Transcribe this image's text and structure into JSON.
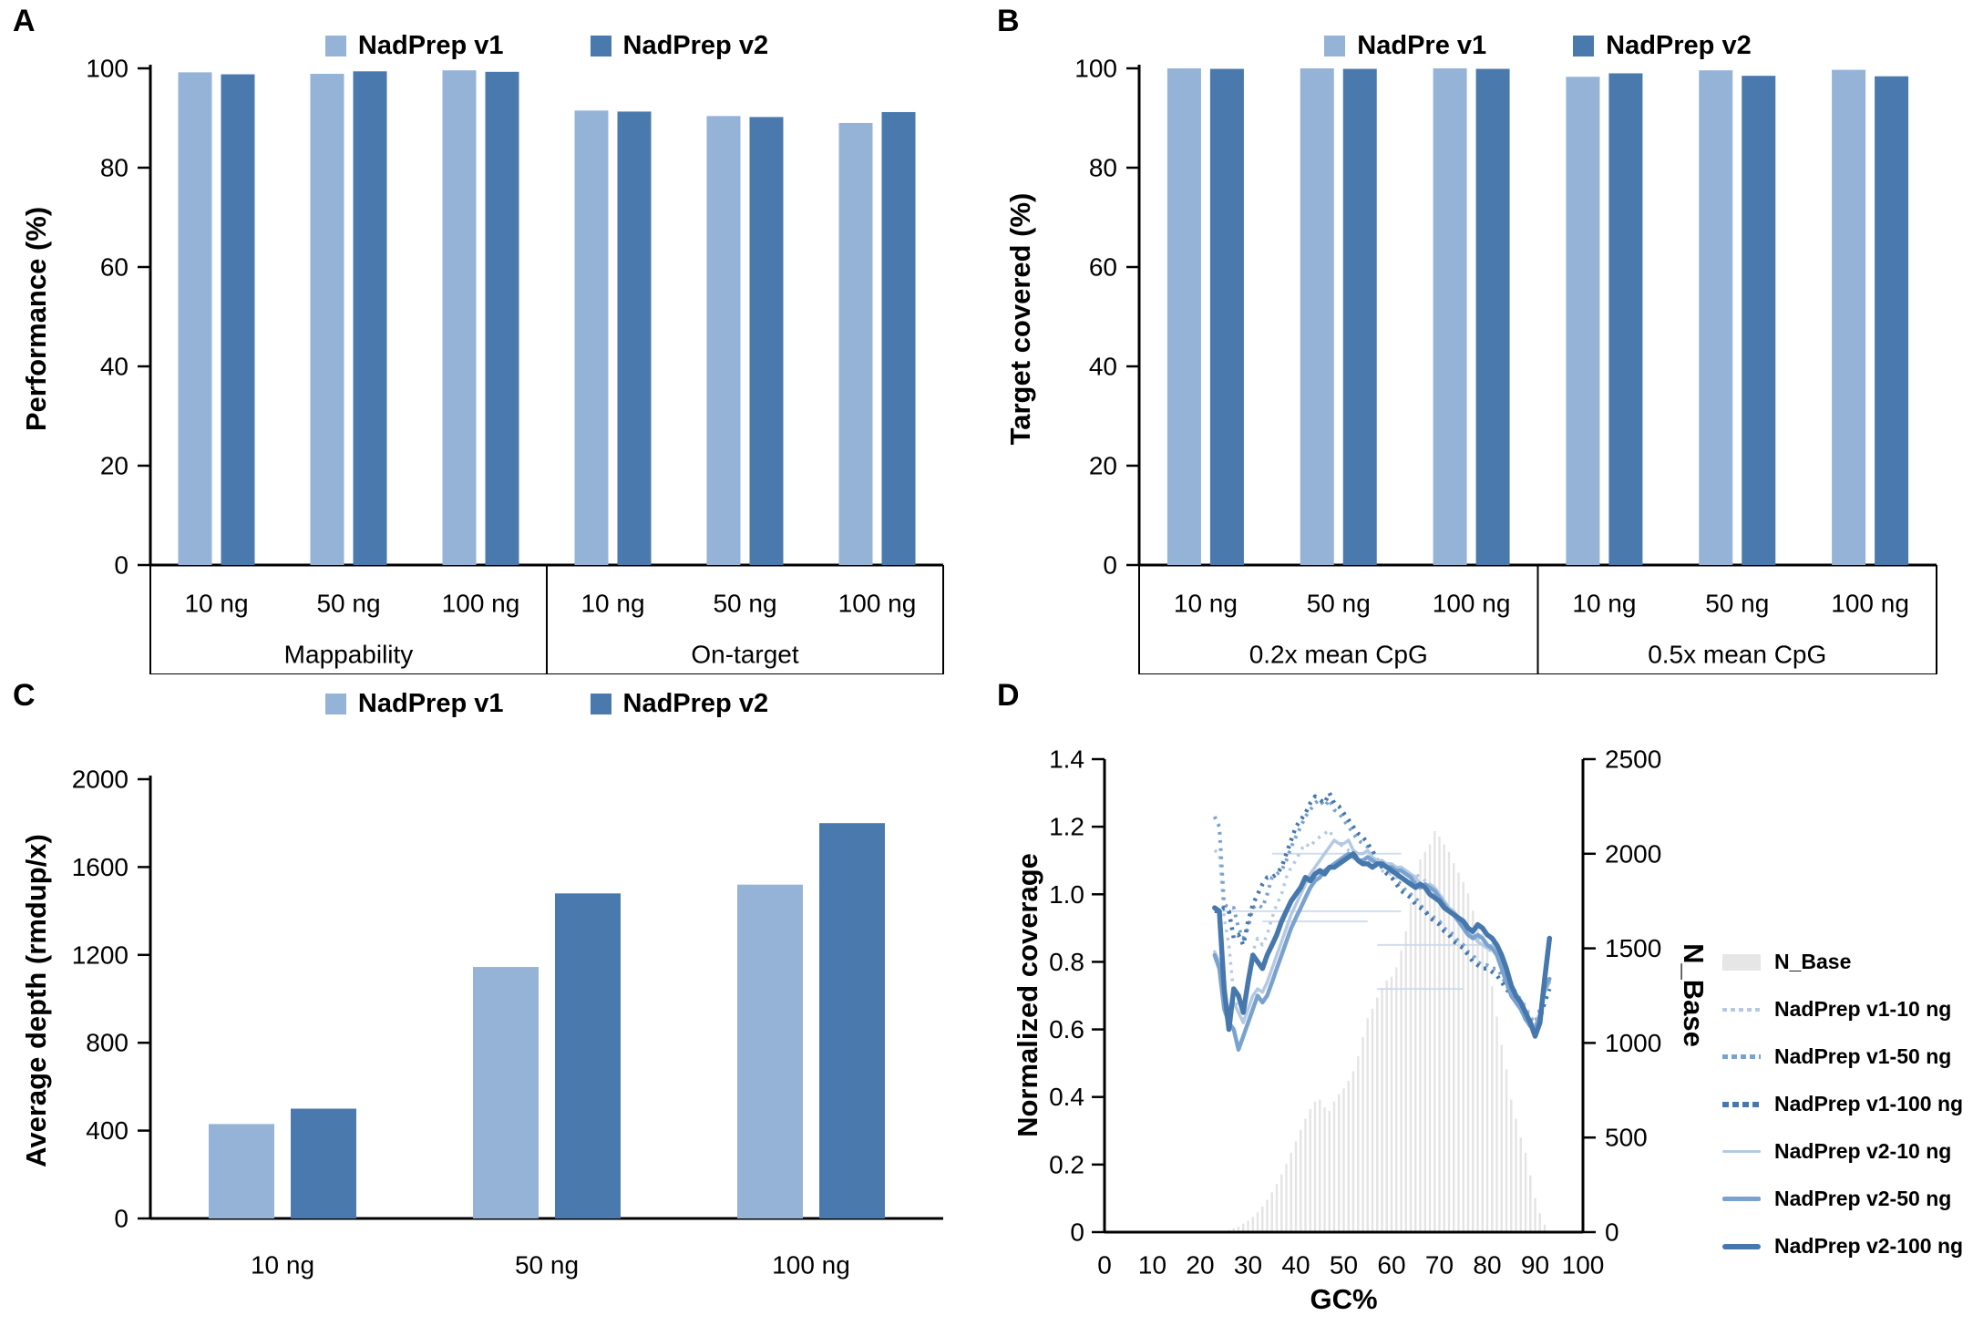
{
  "colors": {
    "bar_light": "#95b3d7",
    "bar_dark": "#4a7aad",
    "line_10": "#b4c9e2",
    "line_50": "#7aa2cf",
    "line_100": "#4678ad",
    "histogram": "#e4e4e4",
    "axis": "#000000",
    "artifact": "#c9d9ec"
  },
  "panels": {
    "a": {
      "letter": "A",
      "ylabel": "Performance (%)",
      "legend": [
        "NadPrep v1",
        "NadPrep v2"
      ]
    },
    "b": {
      "letter": "B",
      "ylabel": "Target covered (%)",
      "legend": [
        "NadPre v1",
        "NadPrep v2"
      ]
    },
    "c": {
      "letter": "C",
      "ylabel": "Average depth (rmdup/x)",
      "legend": [
        "NadPrep v1",
        "NadPrep v2"
      ]
    },
    "d": {
      "letter": "D",
      "ylabel_left": "Normalized coverage",
      "ylabel_right": "N_Base",
      "xlabel": "GC%",
      "legend": [
        "N_Base",
        "NadPrep v1-10 ng",
        "NadPrep v1-50 ng",
        "NadPrep v1-100 ng",
        "NadPrep v2-10 ng",
        "NadPrep v2-50 ng",
        "NadPrep v2-100 ng"
      ]
    }
  },
  "chart_data": [
    {
      "id": "a",
      "type": "bar",
      "ylabel": "Performance (%)",
      "ylim": [
        0,
        100
      ],
      "yticks": [
        "0",
        "20",
        "40",
        "60",
        "80",
        "100"
      ],
      "legend": [
        "NadPrep v1",
        "NadPrep v2"
      ],
      "groups": [
        {
          "label": "Mappability",
          "categories": [
            "10 ng",
            "50 ng",
            "100 ng"
          ]
        },
        {
          "label": "On-target",
          "categories": [
            "10 ng",
            "50 ng",
            "100 ng"
          ]
        }
      ],
      "series": [
        {
          "name": "NadPrep v1",
          "values": [
            99.2,
            98.9,
            99.6,
            91.5,
            90.4,
            89.0
          ]
        },
        {
          "name": "NadPrep v2",
          "values": [
            98.8,
            99.4,
            99.3,
            91.3,
            90.2,
            91.2
          ]
        }
      ]
    },
    {
      "id": "b",
      "type": "bar",
      "ylabel": "Target covered (%)",
      "ylim": [
        0,
        100
      ],
      "yticks": [
        "0",
        "20",
        "40",
        "60",
        "80",
        "100"
      ],
      "legend": [
        "NadPre v1",
        "NadPrep v2"
      ],
      "groups": [
        {
          "label": "0.2x mean CpG",
          "categories": [
            "10 ng",
            "50 ng",
            "100 ng"
          ]
        },
        {
          "label": "0.5x mean CpG",
          "categories": [
            "10 ng",
            "50 ng",
            "100 ng"
          ]
        }
      ],
      "series": [
        {
          "name": "NadPre v1",
          "values": [
            100,
            100,
            100,
            98.3,
            99.6,
            99.7
          ]
        },
        {
          "name": "NadPrep v2",
          "values": [
            99.9,
            99.9,
            99.9,
            99.0,
            98.5,
            98.4
          ]
        }
      ]
    },
    {
      "id": "c",
      "type": "bar",
      "ylabel": "Average depth (rmdup/x)",
      "ylim": [
        0,
        2000
      ],
      "yticks": [
        "0",
        "400",
        "800",
        "1200",
        "1600",
        "2000"
      ],
      "legend": [
        "NadPrep v1",
        "NadPrep v2"
      ],
      "categories": [
        "10 ng",
        "50 ng",
        "100 ng"
      ],
      "series": [
        {
          "name": "NadPrep v1",
          "values": [
            430,
            1145,
            1520
          ]
        },
        {
          "name": "NadPrep v2",
          "values": [
            500,
            1480,
            1800
          ]
        }
      ]
    },
    {
      "id": "d",
      "type": "line",
      "title": "",
      "xlabel": "GC%",
      "ylabel_left": "Normalized coverage",
      "ylabel_right": "N_Base",
      "xlim": [
        0,
        100
      ],
      "ylim_left": [
        0,
        1.4
      ],
      "ylim_right": [
        0,
        2500
      ],
      "xticks": [
        "0",
        "10",
        "20",
        "30",
        "40",
        "50",
        "60",
        "70",
        "80",
        "90",
        "100"
      ],
      "yticks_left": [
        "0",
        "0.2",
        "0.4",
        "0.6",
        "0.8",
        "1.0",
        "1.2",
        "1.4"
      ],
      "yticks_right": [
        "0",
        "500",
        "1000",
        "1500",
        "2000",
        "2500"
      ],
      "legend_position": "right",
      "histogram": {
        "name": "N_Base",
        "axis": "right",
        "x_start": 26,
        "x_step": 1,
        "values": [
          10,
          20,
          30,
          45,
          60,
          80,
          105,
          135,
          170,
          210,
          255,
          305,
          360,
          420,
          480,
          540,
          600,
          650,
          690,
          700,
          660,
          640,
          690,
          730,
          760,
          800,
          850,
          930,
          1030,
          1130,
          1180,
          1240,
          1290,
          1330,
          1350,
          1400,
          1490,
          1590,
          1740,
          1890,
          1970,
          2010,
          2050,
          2120,
          2090,
          2050,
          2010,
          1950,
          1900,
          1850,
          1790,
          1700,
          1640,
          1580,
          1530,
          1300,
          1140,
          990,
          860,
          700,
          600,
          500,
          420,
          300,
          180,
          100,
          40
        ]
      },
      "lines": [
        {
          "name": "NadPrep v1-10 ng",
          "style": "dotted",
          "tone": "10",
          "width": 3.5,
          "x_start": 23,
          "x_step": 1,
          "values": [
            1.13,
            1.12,
            0.93,
            0.85,
            0.7,
            0.65,
            0.63,
            0.74,
            0.83,
            0.87,
            0.85,
            0.88,
            0.93,
            0.97,
            1.0,
            1.05,
            1.08,
            1.1,
            1.13,
            1.15,
            1.14,
            1.16,
            1.17,
            1.18,
            1.19,
            1.16,
            1.15,
            1.14,
            1.13,
            1.12,
            1.11,
            1.1,
            1.1,
            1.09,
            1.08,
            1.07,
            1.06,
            1.06,
            1.05,
            1.05,
            1.04,
            1.05,
            1.06,
            1.05,
            1.04,
            1.02,
            1.01,
            1.0,
            0.98,
            0.96,
            0.94,
            0.92,
            0.91,
            0.89,
            0.87,
            0.87,
            0.86,
            0.84,
            0.83,
            0.82,
            0.81,
            0.78,
            0.74,
            0.71,
            0.69,
            0.67,
            0.64,
            0.62,
            0.64,
            0.7,
            0.74
          ]
        },
        {
          "name": "NadPrep v1-50 ng",
          "style": "dotted",
          "tone": "50",
          "width": 4,
          "x_start": 23,
          "x_step": 1,
          "values": [
            1.23,
            1.2,
            0.97,
            0.96,
            0.96,
            0.9,
            0.87,
            0.9,
            0.96,
            0.97,
            0.96,
            1.0,
            1.05,
            1.06,
            1.07,
            1.1,
            1.14,
            1.17,
            1.2,
            1.23,
            1.25,
            1.27,
            1.28,
            1.26,
            1.28,
            1.25,
            1.24,
            1.22,
            1.2,
            1.18,
            1.16,
            1.15,
            1.14,
            1.12,
            1.1,
            1.08,
            1.07,
            1.05,
            1.04,
            1.03,
            1.01,
            1.0,
            0.99,
            0.97,
            0.95,
            0.94,
            0.93,
            0.92,
            0.9,
            0.89,
            0.88,
            0.86,
            0.85,
            0.83,
            0.82,
            0.8,
            0.79,
            0.79,
            0.78,
            0.78,
            0.76,
            0.73,
            0.71,
            0.7,
            0.68,
            0.66,
            0.63,
            0.62,
            0.66,
            0.72,
            0.76
          ]
        },
        {
          "name": "NadPrep v1-100 ng",
          "style": "dotted",
          "tone": "100",
          "width": 4.5,
          "x_start": 23,
          "x_step": 1,
          "values": [
            0.95,
            0.95,
            0.96,
            0.95,
            0.87,
            0.88,
            0.85,
            0.92,
            0.97,
            1.0,
            1.03,
            1.05,
            1.05,
            1.06,
            1.08,
            1.12,
            1.16,
            1.2,
            1.22,
            1.24,
            1.27,
            1.29,
            1.28,
            1.27,
            1.3,
            1.27,
            1.26,
            1.24,
            1.22,
            1.2,
            1.18,
            1.17,
            1.15,
            1.13,
            1.1,
            1.08,
            1.06,
            1.05,
            1.03,
            1.01,
            1.0,
            0.99,
            0.97,
            0.96,
            0.95,
            0.93,
            0.92,
            0.91,
            0.89,
            0.88,
            0.86,
            0.85,
            0.84,
            0.82,
            0.8,
            0.79,
            0.78,
            0.78,
            0.77,
            0.76,
            0.74,
            0.72,
            0.7,
            0.68,
            0.66,
            0.63,
            0.61,
            0.6,
            0.63,
            0.68,
            0.72
          ]
        },
        {
          "name": "NadPrep v2-10 ng",
          "style": "solid",
          "tone": "10",
          "width": 3.5,
          "x_start": 23,
          "x_step": 1,
          "values": [
            0.83,
            0.8,
            0.7,
            0.66,
            0.68,
            0.65,
            0.62,
            0.66,
            0.7,
            0.72,
            0.71,
            0.74,
            0.78,
            0.82,
            0.86,
            0.9,
            0.94,
            0.97,
            1.0,
            1.03,
            1.06,
            1.08,
            1.1,
            1.12,
            1.14,
            1.16,
            1.15,
            1.15,
            1.16,
            1.13,
            1.12,
            1.12,
            1.13,
            1.11,
            1.1,
            1.1,
            1.09,
            1.09,
            1.08,
            1.08,
            1.07,
            1.06,
            1.05,
            1.03,
            1.02,
            1.03,
            1.02,
            1.0,
            0.98,
            0.96,
            0.95,
            0.93,
            0.91,
            0.89,
            0.88,
            0.86,
            0.85,
            0.84,
            0.85,
            0.83,
            0.8,
            0.77,
            0.73,
            0.7,
            0.67,
            0.64,
            0.62,
            0.61,
            0.65,
            0.71,
            0.74
          ]
        },
        {
          "name": "NadPrep v2-50 ng",
          "style": "solid",
          "tone": "50",
          "width": 4.5,
          "x_start": 23,
          "x_step": 1,
          "values": [
            0.82,
            0.78,
            0.66,
            0.62,
            0.6,
            0.54,
            0.58,
            0.62,
            0.66,
            0.7,
            0.68,
            0.7,
            0.74,
            0.78,
            0.82,
            0.86,
            0.9,
            0.93,
            0.96,
            0.99,
            1.02,
            1.04,
            1.05,
            1.07,
            1.08,
            1.09,
            1.1,
            1.11,
            1.12,
            1.11,
            1.1,
            1.1,
            1.11,
            1.1,
            1.09,
            1.09,
            1.08,
            1.08,
            1.07,
            1.07,
            1.06,
            1.05,
            1.03,
            1.02,
            1.03,
            1.02,
            1.01,
            0.99,
            0.97,
            0.95,
            0.94,
            0.92,
            0.9,
            0.88,
            0.87,
            0.88,
            0.87,
            0.85,
            0.84,
            0.82,
            0.78,
            0.74,
            0.7,
            0.68,
            0.66,
            0.63,
            0.61,
            0.6,
            0.64,
            0.72,
            0.75
          ]
        },
        {
          "name": "NadPrep v2-100 ng",
          "style": "solid",
          "tone": "100",
          "width": 5.5,
          "x_start": 23,
          "x_step": 1,
          "values": [
            0.96,
            0.95,
            0.72,
            0.6,
            0.72,
            0.7,
            0.65,
            0.74,
            0.82,
            0.8,
            0.78,
            0.82,
            0.85,
            0.88,
            0.92,
            0.95,
            0.98,
            1.0,
            1.02,
            1.05,
            1.04,
            1.06,
            1.07,
            1.06,
            1.08,
            1.08,
            1.09,
            1.1,
            1.11,
            1.12,
            1.1,
            1.09,
            1.09,
            1.08,
            1.09,
            1.09,
            1.08,
            1.07,
            1.06,
            1.05,
            1.04,
            1.03,
            1.02,
            1.03,
            1.02,
            1.0,
            0.99,
            0.98,
            0.96,
            0.95,
            0.94,
            0.93,
            0.92,
            0.9,
            0.89,
            0.91,
            0.9,
            0.88,
            0.87,
            0.85,
            0.82,
            0.78,
            0.73,
            0.7,
            0.68,
            0.65,
            0.62,
            0.58,
            0.62,
            0.75,
            0.87
          ]
        }
      ],
      "artifact_segments": [
        {
          "y": 1.12,
          "x1": 35,
          "x2": 62
        },
        {
          "y": 0.95,
          "x1": 23,
          "x2": 62
        },
        {
          "y": 0.92,
          "x1": 33,
          "x2": 55
        },
        {
          "y": 0.85,
          "x1": 57,
          "x2": 82
        },
        {
          "y": 0.72,
          "x1": 57,
          "x2": 75
        }
      ]
    }
  ]
}
